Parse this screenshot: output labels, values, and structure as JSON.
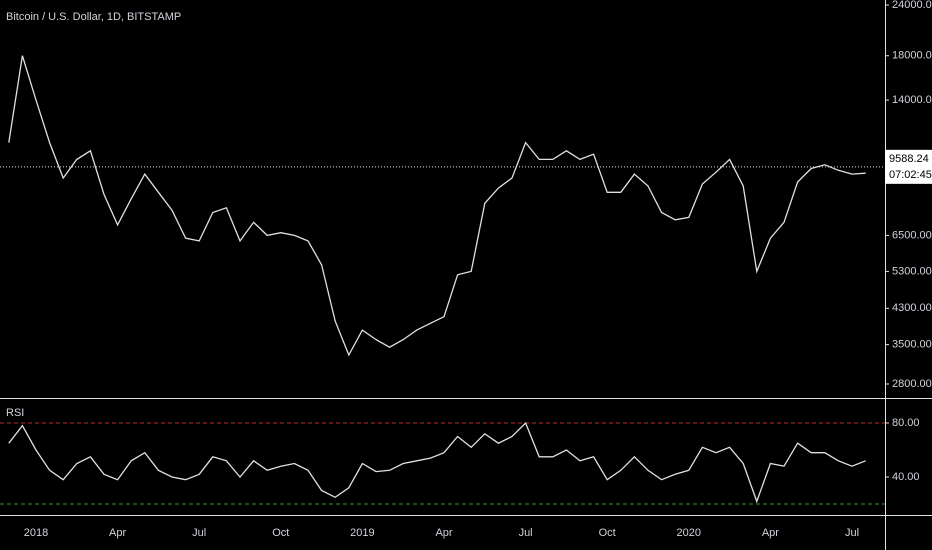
{
  "chart_data": [
    {
      "type": "line",
      "title": "Bitcoin / U.S. Dollar, 1D, BITSTAMP",
      "log_scale": true,
      "color": "#e0e0e0",
      "values": [
        11000,
        18000,
        14000,
        11000,
        9000,
        10000,
        10500,
        8200,
        6900,
        8000,
        9200,
        8300,
        7500,
        6400,
        6300,
        7400,
        7600,
        6300,
        7000,
        6500,
        6600,
        6500,
        6300,
        5500,
        4000,
        3300,
        3800,
        3600,
        3450,
        3600,
        3800,
        3950,
        4100,
        5200,
        5300,
        7800,
        8500,
        9000,
        11000,
        10000,
        10000,
        10500,
        10000,
        10300,
        8300,
        8300,
        9200,
        8600,
        7400,
        7100,
        7200,
        8700,
        9300,
        10000,
        8600,
        5300,
        6400,
        7000,
        8800,
        9500,
        9700,
        9400,
        9200,
        9250
      ],
      "ylim": [
        2586,
        24690
      ],
      "yticks": [
        {
          "value": 2800,
          "label": "2800.00"
        },
        {
          "value": 3500,
          "label": "3500.00"
        },
        {
          "value": 4300,
          "label": "4300.00"
        },
        {
          "value": 5300,
          "label": "5300.00"
        },
        {
          "value": 6500,
          "label": "6500.00"
        },
        {
          "value": 14000,
          "label": "14000.00"
        },
        {
          "value": 18000,
          "label": "18000.00"
        },
        {
          "value": 24000,
          "label": "24000.00"
        }
      ],
      "last_price": 9588.24,
      "countdown": "07:02:45"
    },
    {
      "type": "line",
      "title": "RSI",
      "color": "#e0e0e0",
      "categories": [
        null,
        null,
        "2018",
        null,
        null,
        null,
        null,
        null,
        "Apr",
        null,
        null,
        null,
        null,
        null,
        "Jul",
        null,
        null,
        null,
        null,
        null,
        "Oct",
        null,
        null,
        null,
        null,
        null,
        "2019",
        null,
        null,
        null,
        null,
        null,
        "Apr",
        null,
        null,
        null,
        null,
        null,
        "Jul",
        null,
        null,
        null,
        null,
        null,
        "Oct",
        null,
        null,
        null,
        null,
        null,
        "2020",
        null,
        null,
        null,
        null,
        null,
        "Apr",
        null,
        null,
        null,
        null,
        null,
        "Jul",
        null
      ],
      "values": [
        65,
        78,
        60,
        45,
        38,
        50,
        55,
        42,
        38,
        52,
        58,
        45,
        40,
        38,
        42,
        55,
        52,
        40,
        52,
        45,
        48,
        50,
        45,
        30,
        25,
        32,
        50,
        44,
        45,
        50,
        52,
        54,
        58,
        70,
        62,
        72,
        65,
        70,
        80,
        55,
        55,
        60,
        52,
        55,
        38,
        45,
        55,
        45,
        38,
        42,
        45,
        62,
        58,
        62,
        50,
        22,
        50,
        48,
        65,
        58,
        58,
        52,
        48,
        52
      ],
      "ylim": [
        11.9,
        97
      ],
      "yticks": [
        {
          "value": 80,
          "label": "80.00"
        },
        {
          "value": 40,
          "label": "40.00"
        }
      ],
      "levels": [
        {
          "value": 80,
          "color": "#c62828"
        },
        {
          "value": 20,
          "color": "#2e9e3a"
        }
      ]
    }
  ]
}
